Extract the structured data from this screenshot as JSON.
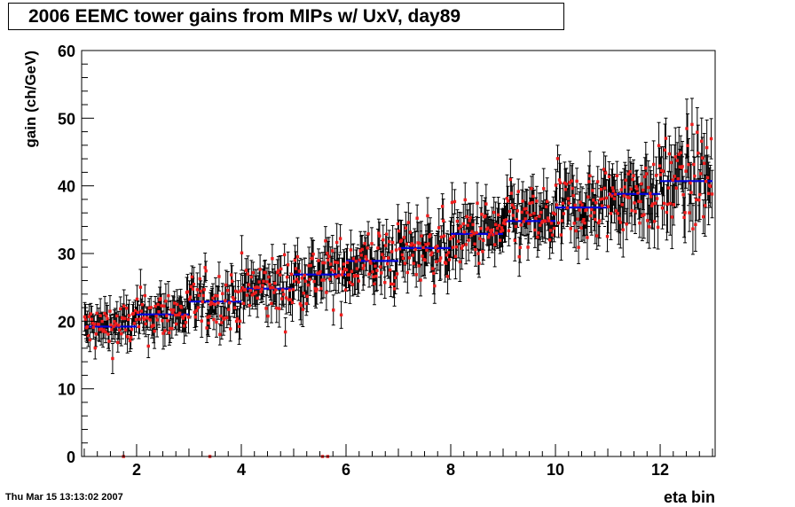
{
  "title": "2006 EEMC tower gains from MIPs w/ UxV, day89",
  "timestamp": "Thu Mar 15 13:13:02 2007",
  "colors": {
    "marker": "#ee1c1c",
    "fit_line": "#0000dd",
    "frame": "#000000"
  },
  "chart_data": {
    "type": "scatter",
    "title": "2006 EEMC tower gains from MIPs w/ UxV, day89",
    "xlabel": "eta bin",
    "ylabel": "gain (ch/GeV)",
    "xlim": [
      0.95,
      13.05
    ],
    "ylim": [
      0,
      60
    ],
    "x_ticks": [
      2,
      4,
      6,
      8,
      10,
      12
    ],
    "y_ticks": [
      0,
      10,
      20,
      30,
      40,
      50,
      60
    ],
    "grid": false,
    "error_bars": true,
    "eta_bins": [
      {
        "bin": 1,
        "mean_gain": 19.2,
        "spread": 1.8,
        "err": 1.8
      },
      {
        "bin": 2,
        "mean_gain": 21.0,
        "spread": 1.9,
        "err": 1.9
      },
      {
        "bin": 3,
        "mean_gain": 22.9,
        "spread": 2.2,
        "err": 2.0
      },
      {
        "bin": 4,
        "mean_gain": 24.8,
        "spread": 2.3,
        "err": 2.1
      },
      {
        "bin": 5,
        "mean_gain": 26.9,
        "spread": 2.4,
        "err": 2.2
      },
      {
        "bin": 6,
        "mean_gain": 28.9,
        "spread": 2.4,
        "err": 2.3
      },
      {
        "bin": 7,
        "mean_gain": 30.8,
        "spread": 2.5,
        "err": 2.3
      },
      {
        "bin": 8,
        "mean_gain": 32.9,
        "spread": 2.4,
        "err": 2.4
      },
      {
        "bin": 9,
        "mean_gain": 34.8,
        "spread": 2.6,
        "err": 2.5
      },
      {
        "bin": 10,
        "mean_gain": 36.8,
        "spread": 2.8,
        "err": 2.7
      },
      {
        "bin": 11,
        "mean_gain": 38.8,
        "spread": 2.9,
        "err": 2.9
      },
      {
        "bin": 12,
        "mean_gain": 40.7,
        "spread": 3.6,
        "err": 3.4
      }
    ],
    "points_per_bin": 60,
    "zero_points_x": [
      1.75,
      3.4,
      5.55,
      5.65
    ],
    "fit_segments": [
      {
        "x": [
          1.0,
          2.0
        ],
        "y": 19.2
      },
      {
        "x": [
          2.0,
          3.0
        ],
        "y": 21.0
      },
      {
        "x": [
          3.0,
          4.0
        ],
        "y": 22.9
      },
      {
        "x": [
          4.0,
          5.0
        ],
        "y": 24.8
      },
      {
        "x": [
          5.0,
          6.0
        ],
        "y": 26.9
      },
      {
        "x": [
          6.0,
          7.0
        ],
        "y": 28.9
      },
      {
        "x": [
          7.0,
          8.0
        ],
        "y": 30.8
      },
      {
        "x": [
          8.0,
          9.0
        ],
        "y": 32.9
      },
      {
        "x": [
          9.0,
          10.0
        ],
        "y": 34.8
      },
      {
        "x": [
          10.0,
          11.0
        ],
        "y": 36.8
      },
      {
        "x": [
          11.0,
          12.0
        ],
        "y": 38.8
      },
      {
        "x": [
          12.0,
          13.0
        ],
        "y": 40.7
      }
    ]
  }
}
